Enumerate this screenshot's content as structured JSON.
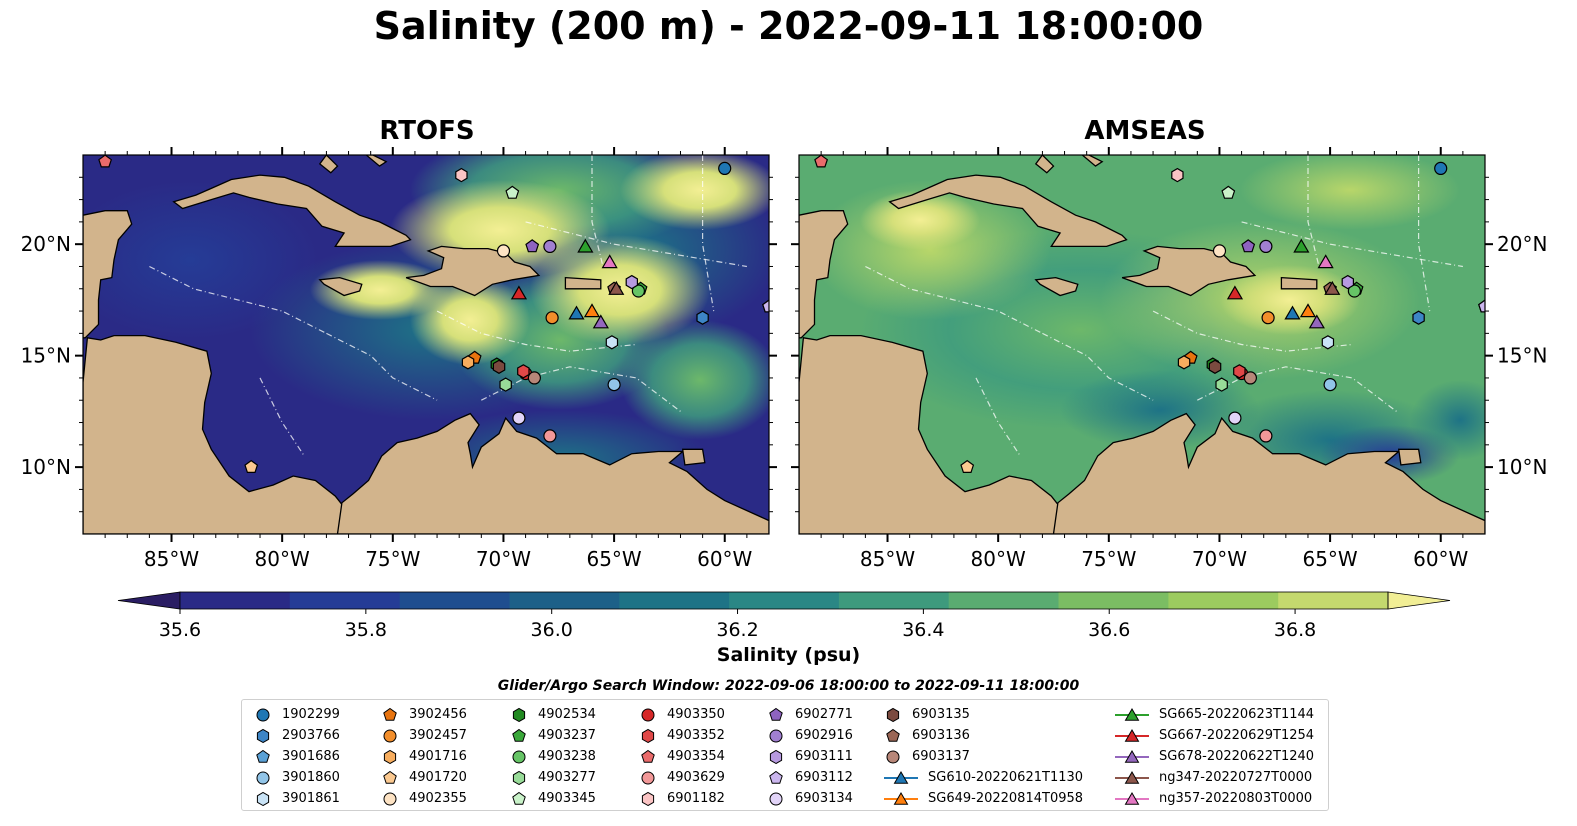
{
  "title": "Salinity (200 m) - 2022-09-11 18:00:00",
  "maps": [
    {
      "title": "RTOFS"
    },
    {
      "title": "AMSEAS"
    }
  ],
  "axes": {
    "x_ticks": [
      "85°W",
      "80°W",
      "75°W",
      "70°W",
      "65°W",
      "60°W"
    ],
    "y_ticks": [
      "20°N",
      "15°N",
      "10°N"
    ]
  },
  "colorbar": {
    "label": "Salinity (psu)",
    "ticks": [
      "35.6",
      "35.8",
      "36.0",
      "36.2",
      "36.4",
      "36.6",
      "36.8"
    ],
    "range": [
      35.55,
      36.95
    ],
    "colors": [
      "#2a1d63",
      "#2a2a86",
      "#253c96",
      "#1f4e8f",
      "#1d6088",
      "#1e7386",
      "#2a8785",
      "#3e9a7d",
      "#5aac71",
      "#7bbd63",
      "#9ccb5f",
      "#c4d96e",
      "#f1ee95"
    ]
  },
  "legend": {
    "title": "Glider/Argo Search Window: 2022-09-06 18:00:00 to 2022-09-11 18:00:00",
    "columns": [
      [
        {
          "label": "1902299",
          "marker": "circle",
          "color": "#1f77b4"
        },
        {
          "label": "2903766",
          "marker": "hexagon",
          "color": "#3d85c6"
        },
        {
          "label": "3901686",
          "marker": "pentagon",
          "color": "#5aa1d6"
        },
        {
          "label": "3901860",
          "marker": "circle",
          "color": "#92c5e8"
        },
        {
          "label": "3901861",
          "marker": "hexagon",
          "color": "#c9e3f6"
        }
      ],
      [
        {
          "label": "3902456",
          "marker": "pentagon",
          "color": "#e8740f"
        },
        {
          "label": "3902457",
          "marker": "circle",
          "color": "#f28e2b"
        },
        {
          "label": "4901716",
          "marker": "hexagon",
          "color": "#f7ad5e"
        },
        {
          "label": "4901720",
          "marker": "pentagon",
          "color": "#fbc990"
        },
        {
          "label": "4902355",
          "marker": "circle",
          "color": "#fde3c4"
        }
      ],
      [
        {
          "label": "4902534",
          "marker": "hexagon",
          "color": "#218a21"
        },
        {
          "label": "4903237",
          "marker": "pentagon",
          "color": "#3aa83a"
        },
        {
          "label": "4903238",
          "marker": "circle",
          "color": "#66c466"
        },
        {
          "label": "4903277",
          "marker": "hexagon",
          "color": "#98db98"
        },
        {
          "label": "4903345",
          "marker": "pentagon",
          "color": "#c9f2c9"
        }
      ],
      [
        {
          "label": "4903350",
          "marker": "circle",
          "color": "#d62728"
        },
        {
          "label": "4903352",
          "marker": "hexagon",
          "color": "#e04848"
        },
        {
          "label": "4903354",
          "marker": "pentagon",
          "color": "#ea6b6b"
        },
        {
          "label": "4903629",
          "marker": "circle",
          "color": "#f29898"
        },
        {
          "label": "6901182",
          "marker": "hexagon",
          "color": "#fbc4c4"
        }
      ],
      [
        {
          "label": "6902771",
          "marker": "pentagon",
          "color": "#8e63c0"
        },
        {
          "label": "6902916",
          "marker": "circle",
          "color": "#a17fd0"
        },
        {
          "label": "6903111",
          "marker": "hexagon",
          "color": "#b79ae0"
        },
        {
          "label": "6903112",
          "marker": "pentagon",
          "color": "#cbb6ee"
        },
        {
          "label": "6903134",
          "marker": "circle",
          "color": "#e2d4f8"
        }
      ],
      [
        {
          "label": "6903135",
          "marker": "hexagon",
          "color": "#7b4a3f"
        },
        {
          "label": "6903136",
          "marker": "pentagon",
          "color": "#9a6656"
        },
        {
          "label": "6903137",
          "marker": "circle",
          "color": "#b88779"
        },
        {
          "label": "SG610-20220621T1130",
          "marker": "triangle-line",
          "color": "#1f77b4"
        },
        {
          "label": "SG649-20220814T0958",
          "marker": "triangle-line",
          "color": "#ff7f0e"
        }
      ],
      [
        {
          "label": "SG665-20220623T1144",
          "marker": "triangle-line",
          "color": "#2ca02c"
        },
        {
          "label": "SG667-20220629T1254",
          "marker": "triangle-line",
          "color": "#d62728"
        },
        {
          "label": "SG678-20220622T1240",
          "marker": "triangle-line",
          "color": "#9467bd"
        },
        {
          "label": "ng347-20220727T0000",
          "marker": "triangle-line",
          "color": "#8c564b"
        },
        {
          "label": "ng357-20220803T0000",
          "marker": "triangle-line",
          "color": "#e377c2"
        }
      ]
    ]
  },
  "chart_data": {
    "type": "heatmap",
    "variable": "Salinity",
    "depth": "200 m",
    "units": "psu",
    "time": "2022-09-11 18:00:00",
    "panels": [
      "RTOFS",
      "AMSEAS"
    ],
    "lon_range": [
      -89,
      -58
    ],
    "lat_range": [
      7,
      24
    ],
    "color_range": [
      35.55,
      36.95
    ],
    "observations": [
      {
        "id": "1902299",
        "lon": -60.0,
        "lat": 23.4
      },
      {
        "id": "2903766",
        "lon": -61.0,
        "lat": 16.7
      },
      {
        "id": "3901686",
        "lon": -58.0,
        "lat": 17.2
      },
      {
        "id": "3901860",
        "lon": -65.0,
        "lat": 13.7
      },
      {
        "id": "3901861",
        "lon": -65.1,
        "lat": 15.6
      },
      {
        "id": "3902456",
        "lon": -71.3,
        "lat": 14.9
      },
      {
        "id": "3902457",
        "lon": -67.8,
        "lat": 16.7
      },
      {
        "id": "4901716",
        "lon": -71.6,
        "lat": 14.7
      },
      {
        "id": "4901720",
        "lon": -81.4,
        "lat": 10.0
      },
      {
        "id": "4902355",
        "lon": -70.0,
        "lat": 19.7
      },
      {
        "id": "4902534",
        "lon": -70.3,
        "lat": 14.6
      },
      {
        "id": "4903237",
        "lon": -63.8,
        "lat": 18.0
      },
      {
        "id": "4903238",
        "lon": -63.9,
        "lat": 17.9
      },
      {
        "id": "4903277",
        "lon": -69.9,
        "lat": 13.7
      },
      {
        "id": "4903345",
        "lon": -69.6,
        "lat": 22.3
      },
      {
        "id": "4903350",
        "lon": -69.0,
        "lat": 14.2
      },
      {
        "id": "4903352",
        "lon": -69.1,
        "lat": 14.3
      },
      {
        "id": "4903354",
        "lon": -88.0,
        "lat": 23.7
      },
      {
        "id": "4903629",
        "lon": -67.9,
        "lat": 11.4
      },
      {
        "id": "6901182",
        "lon": -71.9,
        "lat": 23.1
      },
      {
        "id": "6902771",
        "lon": -68.7,
        "lat": 19.9
      },
      {
        "id": "6902916",
        "lon": -67.9,
        "lat": 19.9
      },
      {
        "id": "6903111",
        "lon": -64.2,
        "lat": 18.3
      },
      {
        "id": "6903112",
        "lon": -58.0,
        "lat": 17.2
      },
      {
        "id": "6903134",
        "lon": -69.3,
        "lat": 12.2
      },
      {
        "id": "6903135",
        "lon": -70.2,
        "lat": 14.5
      },
      {
        "id": "6903136",
        "lon": -65.0,
        "lat": 18.0
      },
      {
        "id": "6903137",
        "lon": -68.6,
        "lat": 14.0
      },
      {
        "id": "SG610-20220621T1130",
        "lon": -66.7,
        "lat": 16.9
      },
      {
        "id": "SG649-20220814T0958",
        "lon": -66.0,
        "lat": 17.0
      },
      {
        "id": "SG665-20220623T1144",
        "lon": -66.3,
        "lat": 19.9
      },
      {
        "id": "SG667-20220629T1254",
        "lon": -69.3,
        "lat": 17.8
      },
      {
        "id": "SG678-20220622T1240",
        "lon": -65.6,
        "lat": 16.5
      },
      {
        "id": "ng347-20220727T0000",
        "lon": -64.9,
        "lat": 18.0
      },
      {
        "id": "ng357-20220803T0000",
        "lon": -65.2,
        "lat": 19.2
      }
    ]
  }
}
